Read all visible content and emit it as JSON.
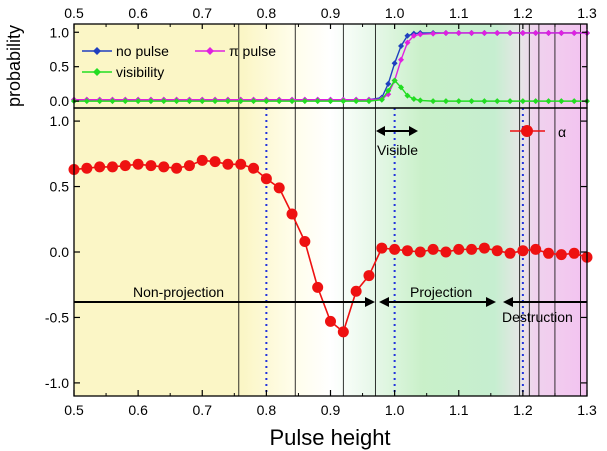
{
  "chart_data": [
    {
      "type": "line",
      "panel": "top",
      "ylabel": "probability",
      "xlim": [
        0.5,
        1.3
      ],
      "ylim": [
        -0.1,
        1.12
      ],
      "xticks": [
        "0.5",
        "0.6",
        "0.7",
        "0.8",
        "0.9",
        "1.0",
        "1.1",
        "1.2",
        "1.3"
      ],
      "yticks": [
        "0.0",
        "0.5",
        "1.0"
      ],
      "x": [
        0.5,
        0.52,
        0.54,
        0.56,
        0.58,
        0.6,
        0.62,
        0.64,
        0.66,
        0.68,
        0.7,
        0.72,
        0.74,
        0.76,
        0.78,
        0.8,
        0.82,
        0.84,
        0.86,
        0.88,
        0.9,
        0.92,
        0.94,
        0.96,
        0.98,
        0.99,
        1.0,
        1.01,
        1.02,
        1.03,
        1.04,
        1.06,
        1.08,
        1.1,
        1.12,
        1.14,
        1.16,
        1.18,
        1.2,
        1.22,
        1.24,
        1.26,
        1.28,
        1.3
      ],
      "series": [
        {
          "name": "no pulse",
          "color": "#1f3fbf",
          "marker": "diamond",
          "values": [
            0.02,
            0.02,
            0.02,
            0.02,
            0.02,
            0.02,
            0.02,
            0.02,
            0.02,
            0.02,
            0.02,
            0.02,
            0.02,
            0.02,
            0.02,
            0.02,
            0.02,
            0.02,
            0.02,
            0.02,
            0.02,
            0.02,
            0.02,
            0.02,
            0.05,
            0.25,
            0.55,
            0.8,
            0.95,
            0.98,
            0.99,
            0.99,
            0.99,
            0.99,
            0.99,
            0.99,
            0.99,
            0.99,
            0.99,
            0.99,
            0.99,
            0.99,
            0.99,
            0.99
          ]
        },
        {
          "name": "π pulse",
          "color": "#e020e0",
          "marker": "diamond",
          "values": [
            0.02,
            0.02,
            0.02,
            0.02,
            0.02,
            0.02,
            0.02,
            0.02,
            0.02,
            0.02,
            0.02,
            0.02,
            0.02,
            0.02,
            0.02,
            0.02,
            0.02,
            0.02,
            0.02,
            0.02,
            0.02,
            0.02,
            0.02,
            0.02,
            0.03,
            0.1,
            0.3,
            0.6,
            0.85,
            0.95,
            0.97,
            0.98,
            0.99,
            0.99,
            0.99,
            0.99,
            0.99,
            0.99,
            0.99,
            0.99,
            0.99,
            0.99,
            0.99,
            0.99
          ]
        },
        {
          "name": "visibility",
          "color": "#22dd22",
          "marker": "diamond",
          "values": [
            0.0,
            0.0,
            0.0,
            0.0,
            0.0,
            0.0,
            0.0,
            0.0,
            0.0,
            0.0,
            0.0,
            0.0,
            0.0,
            0.0,
            0.0,
            0.0,
            0.0,
            0.0,
            0.0,
            0.0,
            0.0,
            0.0,
            0.0,
            0.0,
            0.02,
            0.15,
            0.3,
            0.2,
            0.08,
            0.03,
            0.01,
            0.0,
            0.0,
            0.0,
            0.0,
            0.0,
            0.0,
            0.0,
            0.0,
            0.0,
            0.0,
            0.0,
            0.0,
            0.0
          ]
        }
      ]
    },
    {
      "type": "line",
      "panel": "bottom",
      "xlabel": "Pulse height",
      "xlim": [
        0.5,
        1.3
      ],
      "ylim": [
        -1.1,
        1.1
      ],
      "xticks": [
        "0.5",
        "0.6",
        "0.7",
        "0.8",
        "0.9",
        "1.0",
        "1.1",
        "1.2",
        "1.3"
      ],
      "yticks": [
        "1.0",
        "0.5",
        "0.0",
        "-0.5",
        "-1.0"
      ],
      "series": [
        {
          "name": "α",
          "color": "#ee1111",
          "marker": "circle",
          "x": [
            0.5,
            0.52,
            0.54,
            0.56,
            0.58,
            0.6,
            0.62,
            0.64,
            0.66,
            0.68,
            0.7,
            0.72,
            0.74,
            0.76,
            0.78,
            0.8,
            0.82,
            0.84,
            0.86,
            0.88,
            0.9,
            0.92,
            0.94,
            0.96,
            0.98,
            1.0,
            1.02,
            1.04,
            1.06,
            1.08,
            1.1,
            1.12,
            1.14,
            1.16,
            1.18,
            1.2,
            1.22,
            1.24,
            1.26,
            1.28,
            1.3
          ],
          "values": [
            0.63,
            0.64,
            0.65,
            0.65,
            0.66,
            0.67,
            0.66,
            0.65,
            0.64,
            0.66,
            0.7,
            0.69,
            0.67,
            0.67,
            0.64,
            0.56,
            0.49,
            0.29,
            0.08,
            -0.27,
            -0.53,
            -0.61,
            -0.3,
            -0.18,
            0.03,
            0.02,
            0.01,
            0.0,
            0.02,
            0.0,
            0.02,
            0.02,
            0.03,
            0.01,
            -0.01,
            0.01,
            0.02,
            -0.01,
            -0.02,
            -0.01,
            -0.04
          ]
        }
      ]
    }
  ],
  "labels": {
    "xlabel": "Pulse height",
    "ylabel_top": "probability",
    "legend_no_pulse": "no pulse",
    "legend_pi_pulse": "π pulse",
    "legend_visibility": "visibility",
    "legend_alpha": "α",
    "visible": "Visible",
    "non_projection": "Non-projection",
    "projection": "Projection",
    "destruction": "Destruction"
  },
  "regions": [
    {
      "name": "non-projection",
      "color": "#fbf6c6"
    },
    {
      "name": "projection",
      "color": "#c9f0c9"
    },
    {
      "name": "destruction",
      "color": "#f3c2f0"
    }
  ],
  "guides": {
    "dotted_x": [
      0.8,
      1.0,
      1.2
    ],
    "thin_lines_x": [
      0.757,
      0.845,
      0.92,
      0.97,
      1.195,
      1.21,
      1.225,
      1.25,
      1.29
    ]
  }
}
